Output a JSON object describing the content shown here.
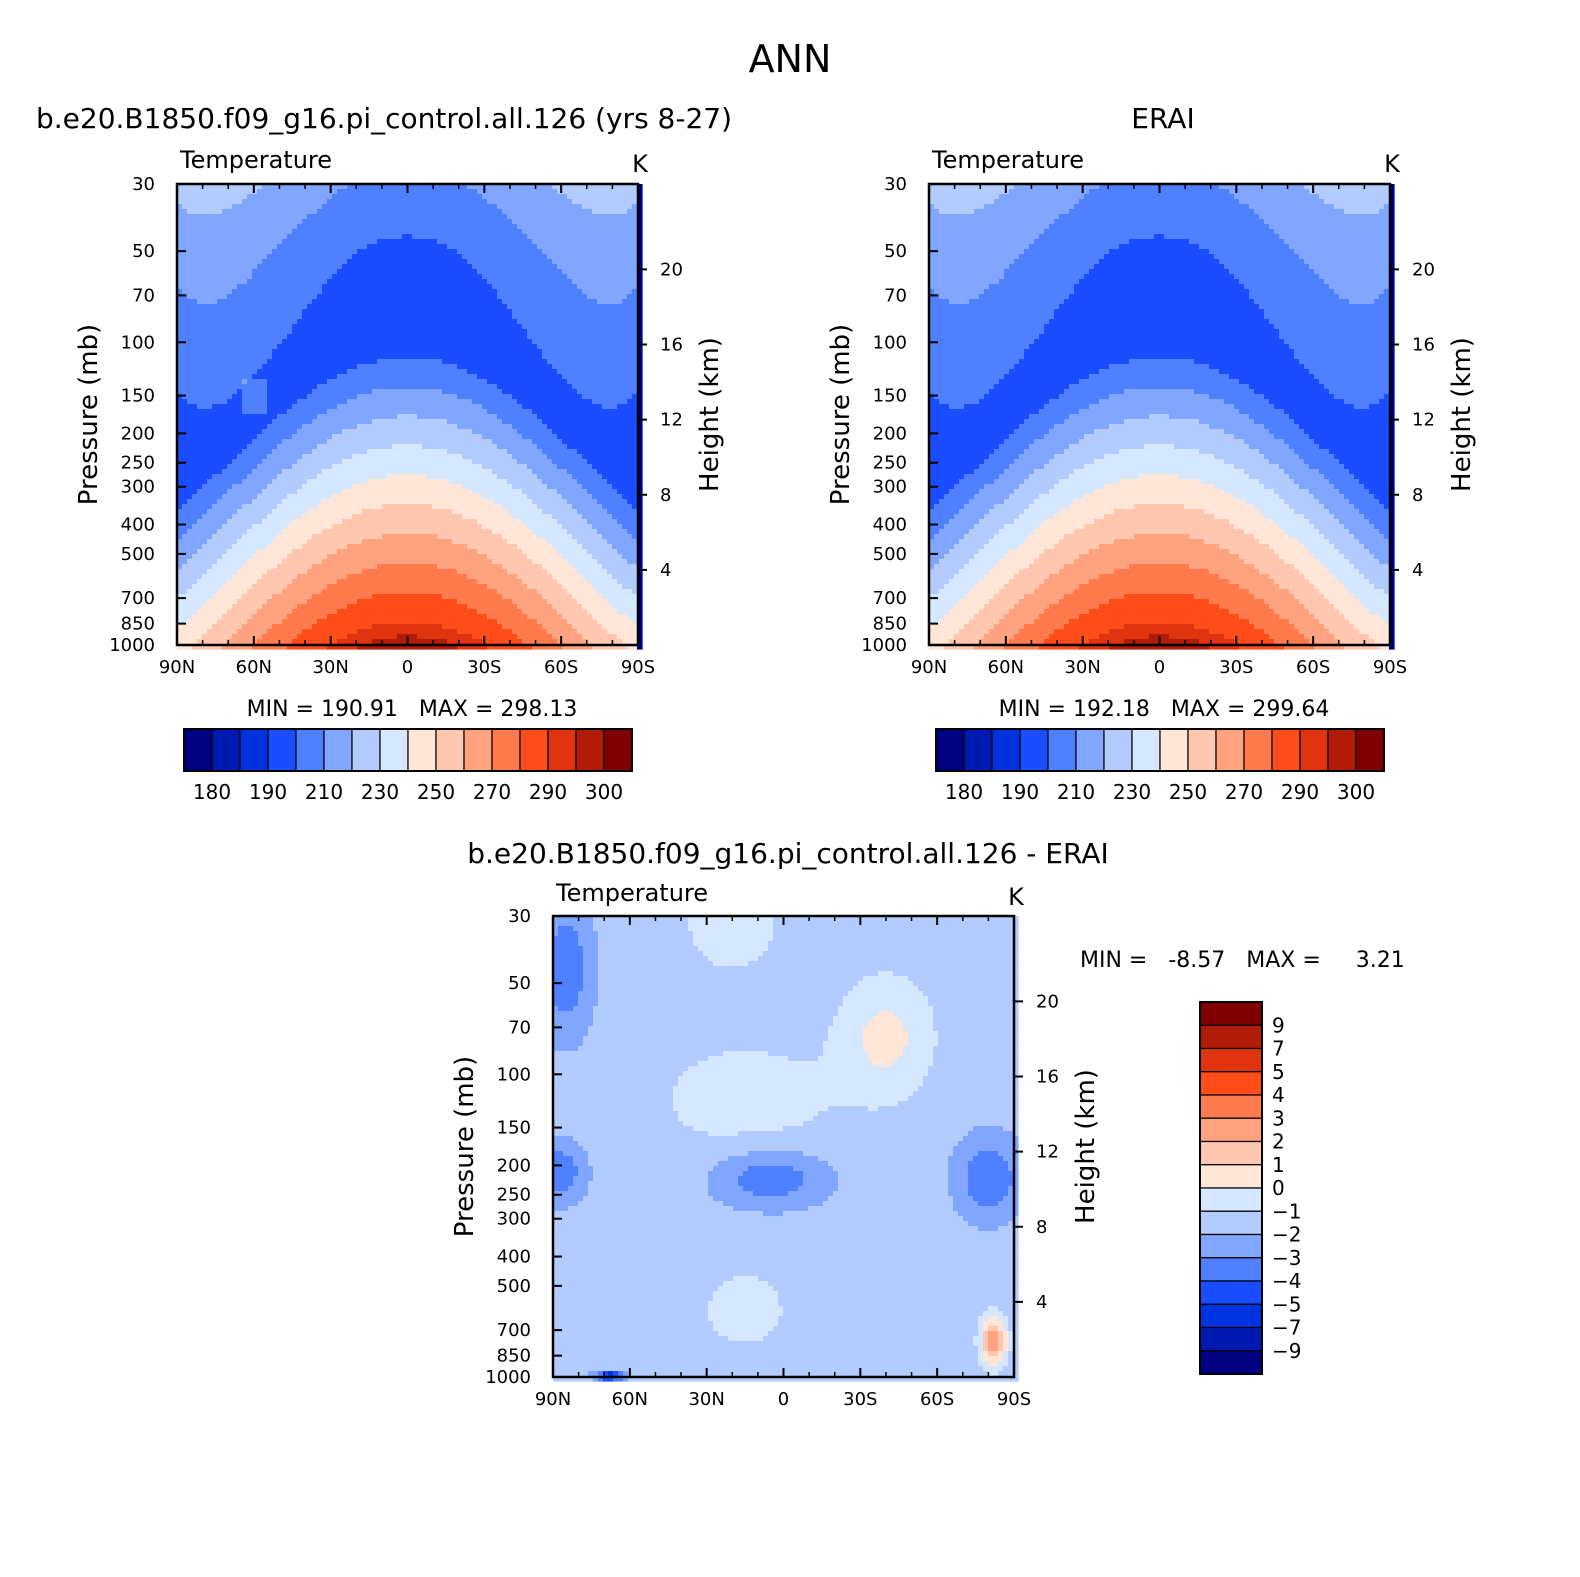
{
  "figure_title": "ANN",
  "chart_data": [
    {
      "type": "heatmap",
      "id": "model",
      "title": "b.e20.B1850.f09_g16.pi_control.all.126 (yrs 8-27)",
      "left_label": "Temperature",
      "units": "K",
      "xlabel": "",
      "ylabel": "Pressure (mb)",
      "ylabel_right": "Height (km)",
      "x_ticks": [
        "90N",
        "60N",
        "30N",
        "0",
        "30S",
        "60S",
        "90S"
      ],
      "y_ticks": [
        "30",
        "50",
        "70",
        "100",
        "150",
        "200",
        "250",
        "300",
        "400",
        "500",
        "700",
        "850",
        "1000"
      ],
      "height_ticks": [
        "20",
        "16",
        "12",
        "8",
        "4"
      ],
      "ylim": [
        1000,
        30
      ],
      "y_scale": "log",
      "stats": "MIN = 190.91   MAX = 298.13",
      "min": 190.91,
      "max": 298.13,
      "colorbar": {
        "orientation": "horizontal",
        "labels": [
          "180",
          "190",
          "210",
          "230",
          "250",
          "270",
          "290",
          "300"
        ],
        "colors": [
          "#000080",
          "#0019b0",
          "#0033e0",
          "#1a4dff",
          "#4f80ff",
          "#80a6ff",
          "#b3ccff",
          "#d6e8ff",
          "#ffe6d6",
          "#ffc7b0",
          "#ffa280",
          "#ff7a4d",
          "#ff4d1a",
          "#e03310",
          "#b01c08",
          "#800000"
        ]
      }
    },
    {
      "type": "heatmap",
      "id": "obs",
      "title": "ERAI",
      "left_label": "Temperature",
      "units": "K",
      "xlabel": "",
      "ylabel": "Pressure (mb)",
      "ylabel_right": "Height (km)",
      "x_ticks": [
        "90N",
        "60N",
        "30N",
        "0",
        "30S",
        "60S",
        "90S"
      ],
      "y_ticks": [
        "30",
        "50",
        "70",
        "100",
        "150",
        "200",
        "250",
        "300",
        "400",
        "500",
        "700",
        "850",
        "1000"
      ],
      "height_ticks": [
        "20",
        "16",
        "12",
        "8",
        "4"
      ],
      "ylim": [
        1000,
        30
      ],
      "y_scale": "log",
      "stats": "MIN = 192.18   MAX = 299.64",
      "min": 192.18,
      "max": 299.64,
      "colorbar": {
        "orientation": "horizontal",
        "labels": [
          "180",
          "190",
          "210",
          "230",
          "250",
          "270",
          "290",
          "300"
        ],
        "colors": [
          "#000080",
          "#0019b0",
          "#0033e0",
          "#1a4dff",
          "#4f80ff",
          "#80a6ff",
          "#b3ccff",
          "#d6e8ff",
          "#ffe6d6",
          "#ffc7b0",
          "#ffa280",
          "#ff7a4d",
          "#ff4d1a",
          "#e03310",
          "#b01c08",
          "#800000"
        ]
      }
    },
    {
      "type": "heatmap",
      "id": "diff",
      "title": "b.e20.B1850.f09_g16.pi_control.all.126 - ERAI",
      "left_label": "Temperature",
      "units": "K",
      "xlabel": "",
      "ylabel": "Pressure (mb)",
      "ylabel_right": "Height (km)",
      "x_ticks": [
        "90N",
        "60N",
        "30N",
        "0",
        "30S",
        "60S",
        "90S"
      ],
      "y_ticks": [
        "30",
        "50",
        "70",
        "100",
        "150",
        "200",
        "250",
        "300",
        "400",
        "500",
        "700",
        "850",
        "1000"
      ],
      "height_ticks": [
        "20",
        "16",
        "12",
        "8",
        "4"
      ],
      "ylim": [
        1000,
        30
      ],
      "y_scale": "log",
      "stats": "MIN =   -8.57   MAX =     3.21",
      "min": -8.57,
      "max": 3.21,
      "colorbar": {
        "orientation": "vertical",
        "labels": [
          "9",
          "7",
          "5",
          "4",
          "3",
          "2",
          "1",
          "0",
          "-1",
          "-2",
          "-3",
          "-4",
          "-5",
          "-7",
          "-9"
        ],
        "colors": [
          "#800000",
          "#b01c08",
          "#e03310",
          "#ff4d1a",
          "#ff7a4d",
          "#ffa280",
          "#ffc7b0",
          "#ffe6d6",
          "#d6e8ff",
          "#b3ccff",
          "#80a6ff",
          "#4f80ff",
          "#1a4dff",
          "#0033e0",
          "#0019b0",
          "#000080"
        ]
      }
    }
  ]
}
